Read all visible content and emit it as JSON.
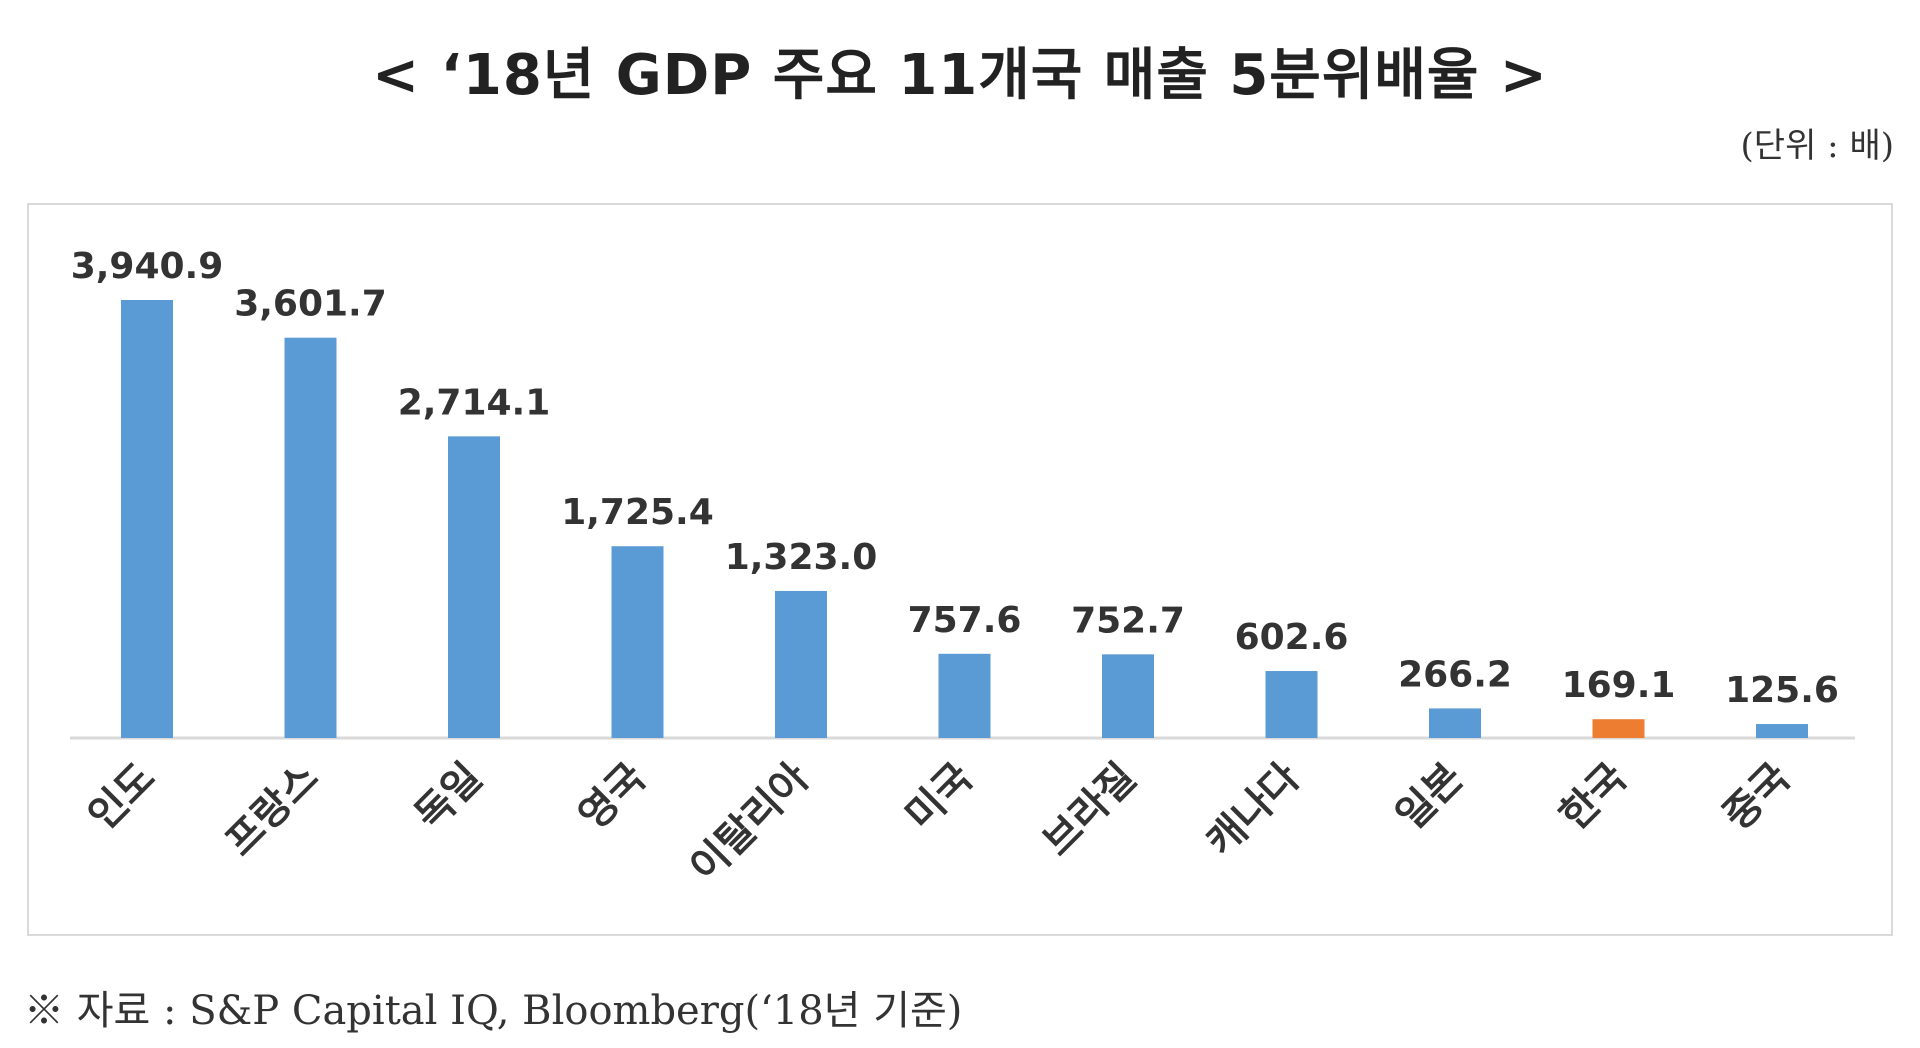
{
  "title": "< ‘18년 GDP 주요 11개국 매출 5분위배율 >",
  "unit_label": "(단위 : 배)",
  "source": "※ 자료 : S&P Capital IQ, Bloomberg(‘18년 기준)",
  "colors": {
    "bar_default": "#5b9bd5",
    "bar_highlight": "#ed7d31",
    "axis_line": "#d9d9d9"
  },
  "chart_data": {
    "type": "bar",
    "categories": [
      "인도",
      "프랑스",
      "독일",
      "영국",
      "이탈리아",
      "미국",
      "브라질",
      "캐나다",
      "일본",
      "한국",
      "중국"
    ],
    "values": [
      3940.9,
      3601.7,
      2714.1,
      1725.4,
      1323.0,
      757.6,
      752.7,
      602.6,
      266.2,
      169.1,
      125.6
    ],
    "value_labels": [
      "3,940.9",
      "3,601.7",
      "2,714.1",
      "1,725.4",
      "1,323.0",
      "757.6",
      "752.7",
      "602.6",
      "266.2",
      "169.1",
      "125.6"
    ],
    "highlight": "한국",
    "ylim": [
      0,
      4000
    ],
    "grid": false,
    "xlabel": "",
    "ylabel": ""
  }
}
